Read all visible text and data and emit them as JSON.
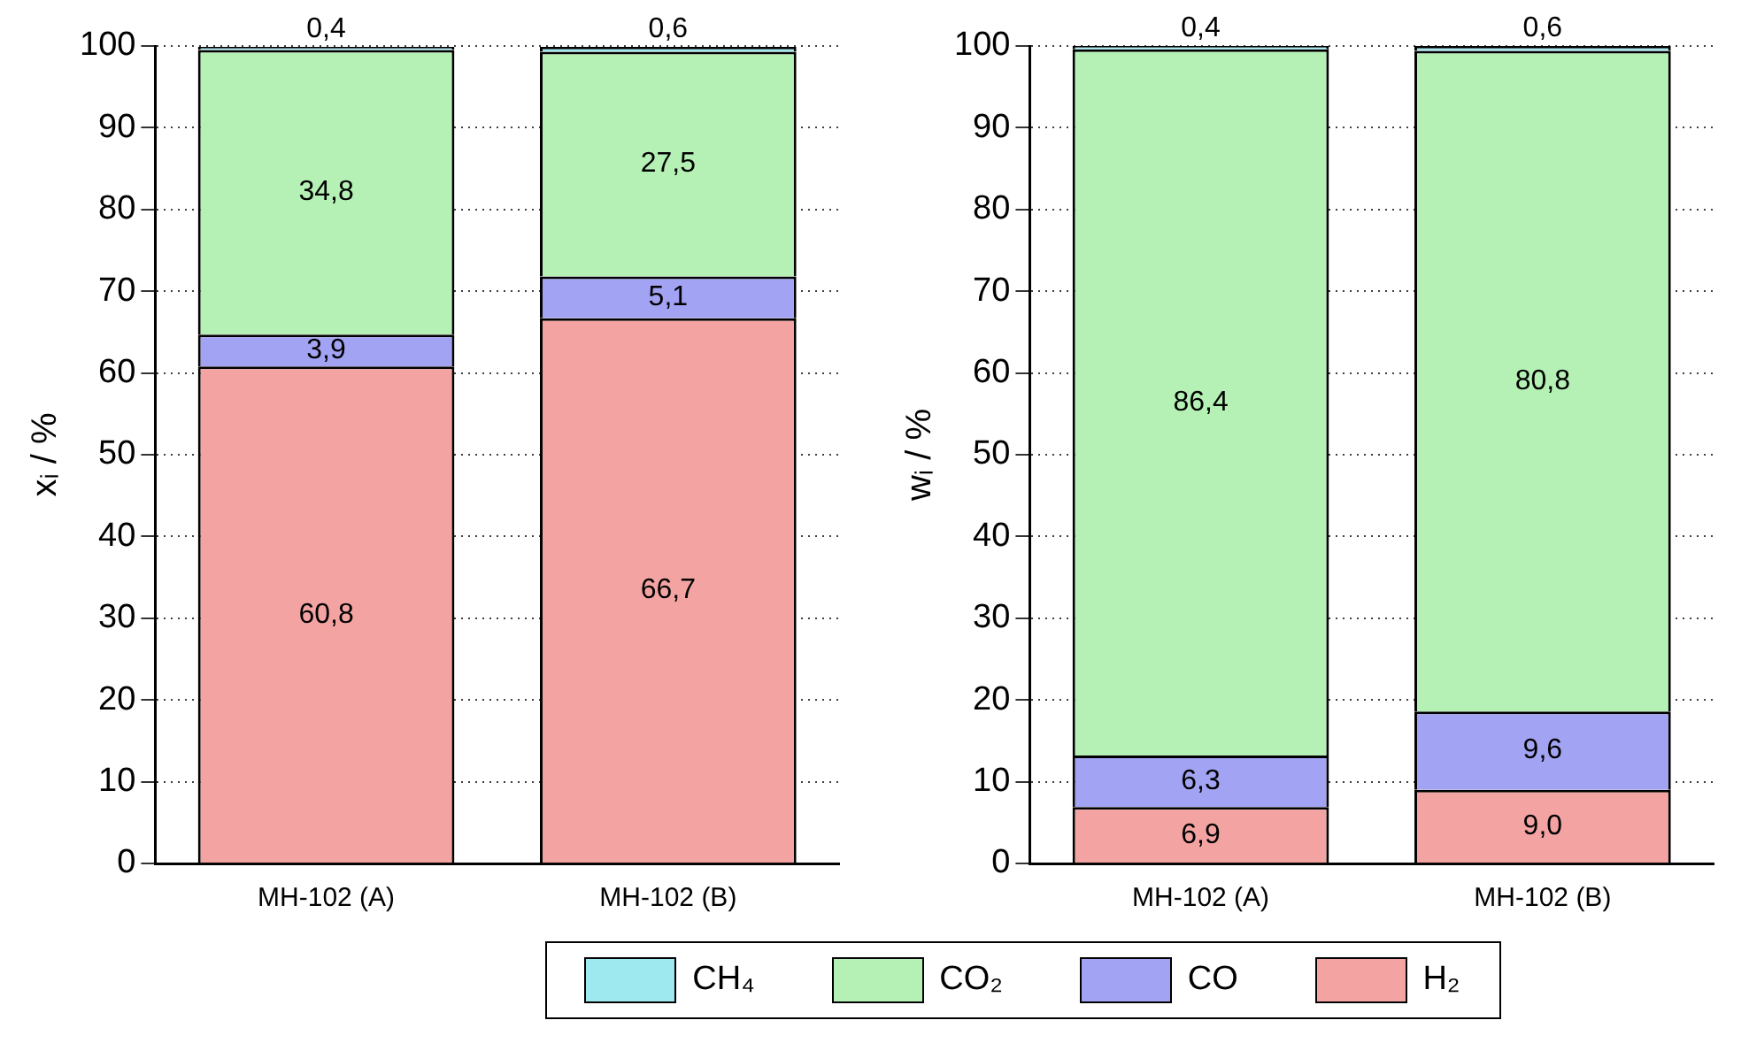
{
  "chart_data": [
    {
      "type": "bar",
      "stacked": true,
      "ylabel": "xᵢ / %",
      "categories": [
        "MH-102 (A)",
        "MH-102 (B)"
      ],
      "ylim": [
        0,
        100
      ],
      "yticks": [
        0,
        10,
        20,
        30,
        40,
        50,
        60,
        70,
        80,
        90,
        100
      ],
      "grid": "y",
      "legend": "bottom",
      "series": [
        {
          "name": "H₂",
          "color": "#f4a3a3",
          "values": [
            60.8,
            66.7
          ],
          "value_labels": [
            "60,8",
            "66,7"
          ]
        },
        {
          "name": "CO",
          "color": "#a3a3f4",
          "values": [
            3.9,
            5.1
          ],
          "value_labels": [
            "3,9",
            "5,1"
          ]
        },
        {
          "name": "CO₂",
          "color": "#b5f0b5",
          "values": [
            34.8,
            27.5
          ],
          "value_labels": [
            "34,8",
            "27,5"
          ]
        },
        {
          "name": "CH₄",
          "color": "#9ee8f0",
          "values": [
            0.4,
            0.6
          ],
          "value_labels": [
            "0,4",
            "0,6"
          ]
        }
      ]
    },
    {
      "type": "bar",
      "stacked": true,
      "ylabel": "wᵢ / %",
      "categories": [
        "MH-102 (A)",
        "MH-102 (B)"
      ],
      "ylim": [
        0,
        100
      ],
      "yticks": [
        0,
        10,
        20,
        30,
        40,
        50,
        60,
        70,
        80,
        90,
        100
      ],
      "grid": "y",
      "series": [
        {
          "name": "H₂",
          "color": "#f4a3a3",
          "values": [
            6.9,
            9.0
          ],
          "value_labels": [
            "6,9",
            "9,0"
          ]
        },
        {
          "name": "CO",
          "color": "#a3a3f4",
          "values": [
            6.3,
            9.6
          ],
          "value_labels": [
            "6,3",
            "9,6"
          ]
        },
        {
          "name": "CO₂",
          "color": "#b5f0b5",
          "values": [
            86.4,
            80.8
          ],
          "value_labels": [
            "86,4",
            "80,8"
          ]
        },
        {
          "name": "CH₄",
          "color": "#9ee8f0",
          "values": [
            0.4,
            0.6
          ],
          "value_labels": [
            "0,4",
            "0,6"
          ]
        }
      ]
    }
  ]
}
